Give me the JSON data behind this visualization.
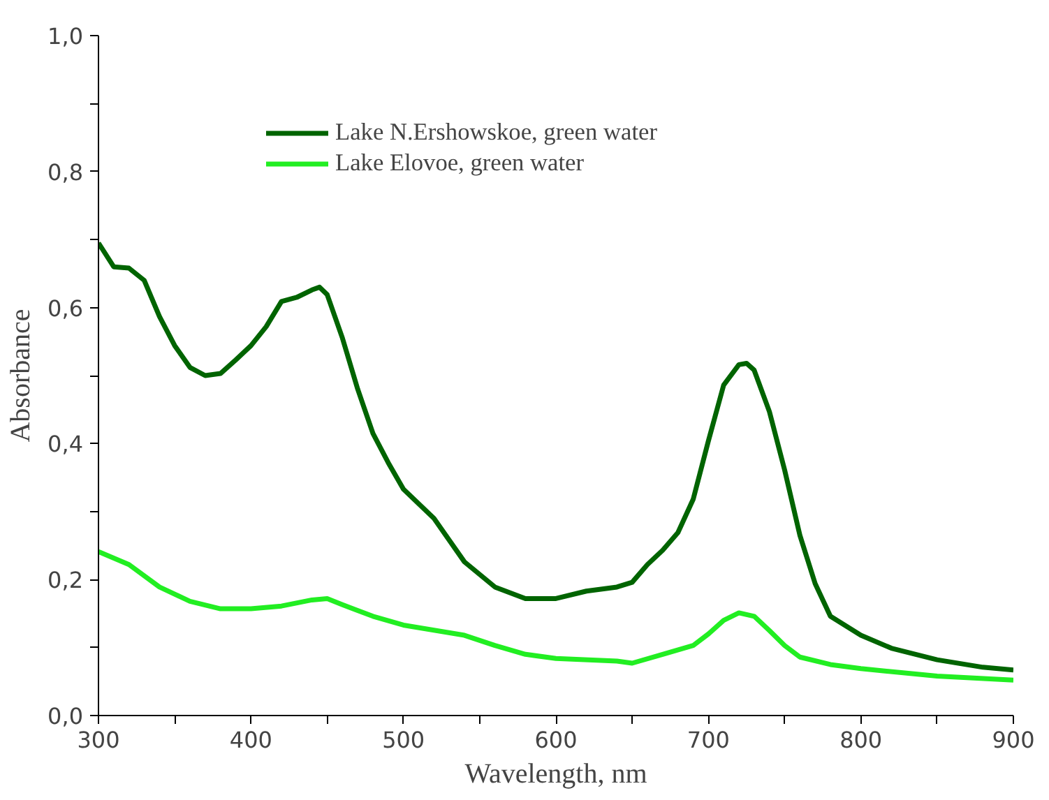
{
  "chart_data": {
    "type": "line",
    "xlabel": "Wavelength, nm",
    "ylabel": "Absorbance",
    "xlim": [
      300,
      900
    ],
    "ylim": [
      0,
      1
    ],
    "xticks": [
      300,
      {
        "value": 350,
        "label": null
      },
      400,
      {
        "value": 450,
        "label": null
      },
      500,
      {
        "value": 550,
        "label": null
      },
      600,
      {
        "value": 650,
        "label": null
      },
      700,
      {
        "value": 750,
        "label": null
      },
      800,
      {
        "value": 850,
        "label": null
      },
      900
    ],
    "yticks": [
      {
        "value": 0,
        "label": "0,0"
      },
      {
        "value": 0.1,
        "label": null
      },
      {
        "value": 0.2,
        "label": "0,2"
      },
      {
        "value": 0.3,
        "label": null
      },
      {
        "value": 0.4,
        "label": "0,4"
      },
      {
        "value": 0.5,
        "label": null
      },
      {
        "value": 0.6,
        "label": "0,6"
      },
      {
        "value": 0.7,
        "label": null
      },
      {
        "value": 0.8,
        "label": "0,8"
      },
      {
        "value": 0.9,
        "label": null
      },
      {
        "value": 1.0,
        "label": "1,0"
      }
    ],
    "grid": false,
    "legend": "top",
    "line_style": "solid",
    "series": [
      {
        "name": "Lake N.Ershowskoe, green water",
        "color": "#006400",
        "x": [
          300,
          310,
          320,
          330,
          340,
          350,
          360,
          370,
          380,
          390,
          400,
          410,
          420,
          430,
          440,
          445,
          450,
          460,
          470,
          480,
          490,
          500,
          520,
          540,
          560,
          580,
          600,
          620,
          640,
          650,
          660,
          670,
          680,
          690,
          700,
          710,
          720,
          725,
          730,
          740,
          750,
          760,
          770,
          780,
          800,
          820,
          850,
          880,
          900
        ],
        "values": [
          0.695,
          0.66,
          0.658,
          0.64,
          0.587,
          0.544,
          0.512,
          0.5,
          0.503,
          0.523,
          0.544,
          0.572,
          0.609,
          0.615,
          0.626,
          0.63,
          0.619,
          0.555,
          0.48,
          0.415,
          0.372,
          0.333,
          0.29,
          0.226,
          0.189,
          0.172,
          0.172,
          0.183,
          0.189,
          0.196,
          0.222,
          0.243,
          0.269,
          0.318,
          0.404,
          0.486,
          0.516,
          0.518,
          0.508,
          0.447,
          0.361,
          0.265,
          0.194,
          0.146,
          0.118,
          0.099,
          0.082,
          0.071,
          0.067
        ]
      },
      {
        "name": "Lake Elovoe, green water",
        "color": "#22ee22",
        "x": [
          300,
          320,
          340,
          360,
          380,
          400,
          420,
          440,
          450,
          460,
          480,
          500,
          540,
          560,
          580,
          600,
          640,
          650,
          670,
          690,
          700,
          710,
          720,
          730,
          740,
          750,
          760,
          780,
          800,
          850,
          900
        ],
        "values": [
          0.241,
          0.222,
          0.189,
          0.168,
          0.157,
          0.157,
          0.161,
          0.17,
          0.172,
          0.163,
          0.146,
          0.133,
          0.118,
          0.103,
          0.09,
          0.084,
          0.08,
          0.077,
          0.09,
          0.103,
          0.12,
          0.14,
          0.151,
          0.146,
          0.125,
          0.103,
          0.086,
          0.075,
          0.069,
          0.058,
          0.052
        ]
      }
    ]
  }
}
